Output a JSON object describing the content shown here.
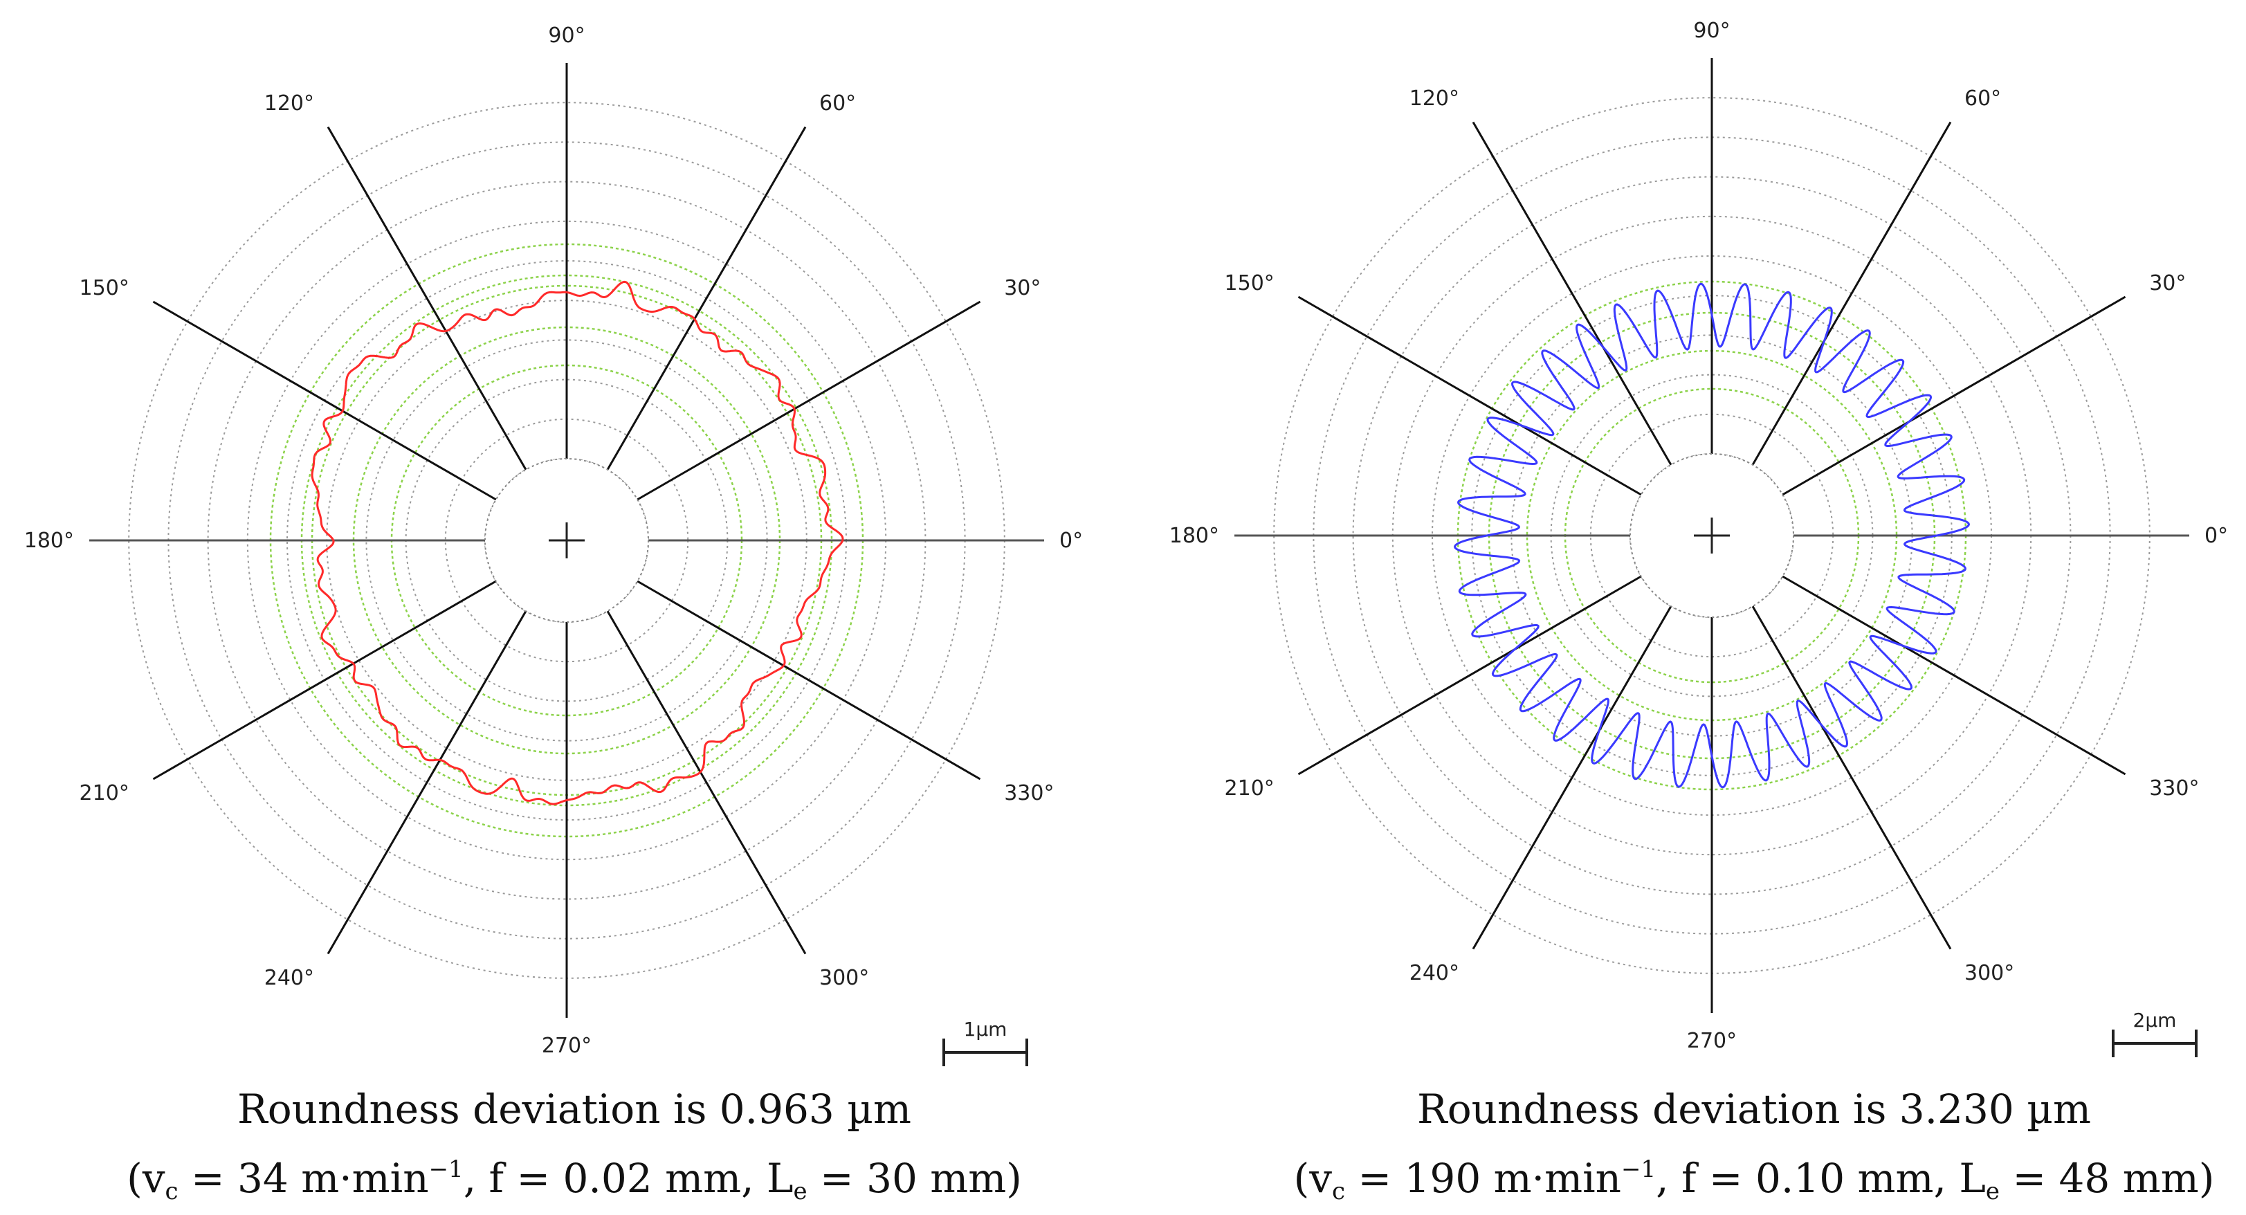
{
  "chart_data": [
    {
      "type": "polar",
      "title": "Roundness deviation is 0.963 µm",
      "caption_line1": "Roundness deviation is 0.963 µm",
      "caption_line2": {
        "p1": "(v",
        "vc_sub": "c",
        "p2": " = 34 m·min",
        "sup": "−1",
        "p3": ", f = 0.02 mm, L",
        "le_sub": "e",
        "p4": " = 30 mm)"
      },
      "scale_bar_label": "1µm",
      "roundness_um": 0.963,
      "cutting_speed": "34 m·min−1",
      "feed": "0.02 mm",
      "engagement_length": "30 mm",
      "angle_labels": [
        "0°",
        "30°",
        "60°",
        "90°",
        "120°",
        "150°",
        "180°",
        "210°",
        "240°",
        "270°",
        "300°",
        "330°"
      ],
      "profile_color": "#ff2a2a",
      "reference_color": "#8cd24a",
      "profile_base_radius": 0.8,
      "profile_waves": [
        {
          "k": 3,
          "a": 0.02,
          "phase": 0.4
        },
        {
          "k": 5,
          "a": 0.015,
          "phase": 1.1
        },
        {
          "k": 7,
          "a": 0.012,
          "phase": 2.3
        },
        {
          "k": 11,
          "a": 0.011,
          "phase": 0.9
        },
        {
          "k": 17,
          "a": 0.012,
          "phase": 3.0
        },
        {
          "k": 23,
          "a": 0.01,
          "phase": 1.7
        },
        {
          "k": 29,
          "a": 0.009,
          "phase": 0.2
        },
        {
          "k": 37,
          "a": 0.008,
          "phase": 2.6
        },
        {
          "k": 47,
          "a": 0.007,
          "phase": 1.3
        },
        {
          "k": 61,
          "a": 0.006,
          "phase": 0.7
        }
      ],
      "profile_dip": {
        "angle_deg": 102,
        "depth": 0.075,
        "width_deg": 5
      }
    },
    {
      "type": "polar",
      "title": "Roundness deviation is 3.230 µm",
      "caption_line1": "Roundness deviation is 3.230 µm",
      "caption_line2": {
        "p1": "(v",
        "vc_sub": "c",
        "p2": " = 190 m·min",
        "sup": "−1",
        "p3": ", f = 0.10 mm, L",
        "le_sub": "e",
        "p4": " = 48 mm)"
      },
      "scale_bar_label": "2µm",
      "roundness_um": 3.23,
      "cutting_speed": "190 m·min−1",
      "feed": "0.10 mm",
      "engagement_length": "48 mm",
      "angle_labels": [
        "0°",
        "30°",
        "60°",
        "90°",
        "120°",
        "150°",
        "180°",
        "210°",
        "240°",
        "270°",
        "300°",
        "330°"
      ],
      "profile_color": "#3a3aff",
      "reference_color": "#8cd24a",
      "profile_base_radius": 0.7,
      "profile_waves": [
        {
          "k": 36,
          "a": 0.1,
          "phase": 0.0
        },
        {
          "k": 2,
          "a": 0.015,
          "phase": 0.5
        }
      ],
      "profile_dip": null
    }
  ]
}
